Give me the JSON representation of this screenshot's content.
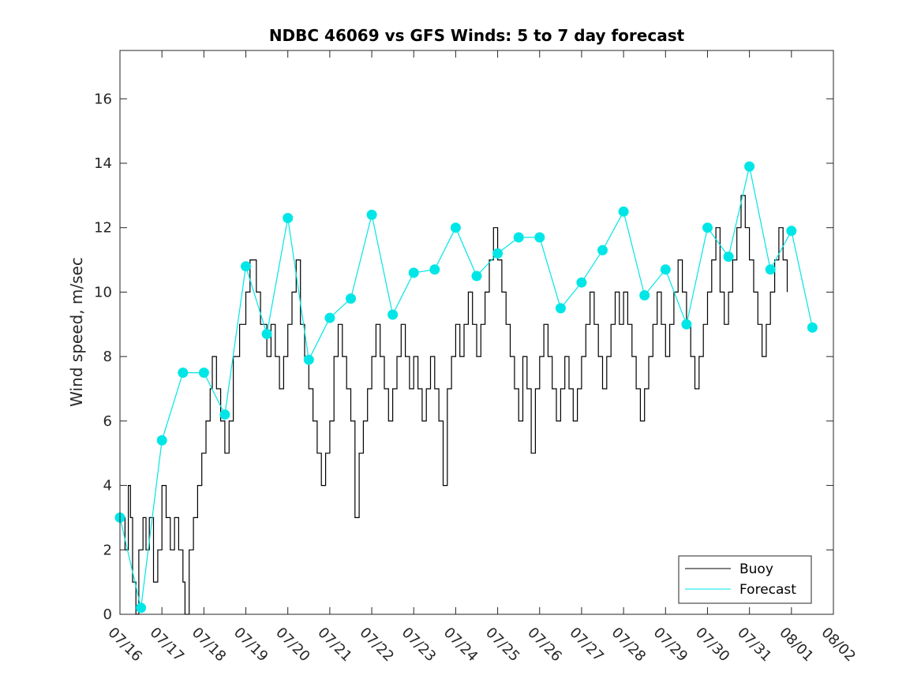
{
  "chart_data": {
    "type": "line",
    "title": "NDBC 46069 vs GFS Winds: 5 to 7 day forecast",
    "xlabel": "",
    "ylabel": "Wind speed, m/sec",
    "xlim": [
      0,
      17
    ],
    "ylim": [
      0,
      17.5
    ],
    "x_tick_labels": [
      "07/16",
      "07/17",
      "07/18",
      "07/19",
      "07/20",
      "07/21",
      "07/22",
      "07/23",
      "07/24",
      "07/25",
      "07/26",
      "07/27",
      "07/28",
      "07/29",
      "07/30",
      "07/31",
      "08/01",
      "08/02"
    ],
    "y_ticks": [
      0,
      2,
      4,
      6,
      8,
      10,
      12,
      14,
      16
    ],
    "grid": false,
    "legend_position": "bottom-right",
    "legend": [
      {
        "label": "Buoy",
        "color": "#000000"
      },
      {
        "label": "Forecast",
        "color": "#00e6e6"
      }
    ],
    "series": [
      {
        "name": "Buoy",
        "color": "#000000",
        "points": [
          [
            0.0,
            3
          ],
          [
            0.12,
            2
          ],
          [
            0.2,
            4
          ],
          [
            0.25,
            3
          ],
          [
            0.3,
            1
          ],
          [
            0.38,
            0
          ],
          [
            0.45,
            2
          ],
          [
            0.55,
            3
          ],
          [
            0.62,
            2
          ],
          [
            0.7,
            3
          ],
          [
            0.8,
            1
          ],
          [
            0.9,
            2
          ],
          [
            1.0,
            4
          ],
          [
            1.1,
            3
          ],
          [
            1.2,
            2
          ],
          [
            1.3,
            3
          ],
          [
            1.4,
            2
          ],
          [
            1.5,
            1
          ],
          [
            1.55,
            0
          ],
          [
            1.65,
            2
          ],
          [
            1.75,
            3
          ],
          [
            1.85,
            4
          ],
          [
            1.95,
            5
          ],
          [
            2.05,
            6
          ],
          [
            2.15,
            7
          ],
          [
            2.2,
            8
          ],
          [
            2.3,
            7
          ],
          [
            2.4,
            6
          ],
          [
            2.5,
            5
          ],
          [
            2.6,
            6
          ],
          [
            2.7,
            8
          ],
          [
            2.85,
            9
          ],
          [
            3.0,
            10
          ],
          [
            3.1,
            11
          ],
          [
            3.25,
            10
          ],
          [
            3.35,
            9
          ],
          [
            3.5,
            8
          ],
          [
            3.6,
            9
          ],
          [
            3.7,
            8
          ],
          [
            3.8,
            7
          ],
          [
            3.9,
            8
          ],
          [
            4.0,
            9
          ],
          [
            4.1,
            10
          ],
          [
            4.2,
            11
          ],
          [
            4.3,
            9
          ],
          [
            4.4,
            8
          ],
          [
            4.5,
            7
          ],
          [
            4.6,
            6
          ],
          [
            4.7,
            5
          ],
          [
            4.8,
            4
          ],
          [
            4.9,
            5
          ],
          [
            5.0,
            6
          ],
          [
            5.1,
            8
          ],
          [
            5.2,
            9
          ],
          [
            5.3,
            8
          ],
          [
            5.4,
            7
          ],
          [
            5.5,
            6
          ],
          [
            5.6,
            3
          ],
          [
            5.7,
            5
          ],
          [
            5.8,
            6
          ],
          [
            5.9,
            7
          ],
          [
            6.0,
            8
          ],
          [
            6.1,
            9
          ],
          [
            6.2,
            8
          ],
          [
            6.3,
            7
          ],
          [
            6.4,
            6
          ],
          [
            6.5,
            7
          ],
          [
            6.6,
            8
          ],
          [
            6.7,
            9
          ],
          [
            6.8,
            8
          ],
          [
            6.9,
            7
          ],
          [
            7.0,
            8
          ],
          [
            7.1,
            7
          ],
          [
            7.2,
            6
          ],
          [
            7.3,
            7
          ],
          [
            7.4,
            8
          ],
          [
            7.5,
            7
          ],
          [
            7.6,
            6
          ],
          [
            7.7,
            4
          ],
          [
            7.8,
            7
          ],
          [
            7.9,
            8
          ],
          [
            8.0,
            9
          ],
          [
            8.1,
            8
          ],
          [
            8.2,
            9
          ],
          [
            8.3,
            10
          ],
          [
            8.4,
            9
          ],
          [
            8.5,
            8
          ],
          [
            8.6,
            9
          ],
          [
            8.7,
            10
          ],
          [
            8.8,
            11
          ],
          [
            8.9,
            12
          ],
          [
            9.0,
            11
          ],
          [
            9.1,
            10
          ],
          [
            9.2,
            9
          ],
          [
            9.3,
            8
          ],
          [
            9.4,
            7
          ],
          [
            9.5,
            6
          ],
          [
            9.6,
            8
          ],
          [
            9.7,
            7
          ],
          [
            9.8,
            5
          ],
          [
            9.9,
            7
          ],
          [
            10.0,
            8
          ],
          [
            10.1,
            9
          ],
          [
            10.2,
            8
          ],
          [
            10.3,
            7
          ],
          [
            10.4,
            6
          ],
          [
            10.5,
            7
          ],
          [
            10.6,
            8
          ],
          [
            10.7,
            7
          ],
          [
            10.8,
            6
          ],
          [
            10.9,
            7
          ],
          [
            11.0,
            8
          ],
          [
            11.1,
            9
          ],
          [
            11.2,
            10
          ],
          [
            11.3,
            9
          ],
          [
            11.4,
            8
          ],
          [
            11.5,
            7
          ],
          [
            11.6,
            8
          ],
          [
            11.7,
            9
          ],
          [
            11.8,
            10
          ],
          [
            11.9,
            9
          ],
          [
            12.0,
            10
          ],
          [
            12.1,
            9
          ],
          [
            12.2,
            8
          ],
          [
            12.3,
            7
          ],
          [
            12.4,
            6
          ],
          [
            12.5,
            7
          ],
          [
            12.6,
            8
          ],
          [
            12.7,
            9
          ],
          [
            12.8,
            10
          ],
          [
            12.9,
            9
          ],
          [
            13.0,
            8
          ],
          [
            13.1,
            9
          ],
          [
            13.2,
            10
          ],
          [
            13.3,
            11
          ],
          [
            13.4,
            10
          ],
          [
            13.5,
            9
          ],
          [
            13.6,
            8
          ],
          [
            13.7,
            7
          ],
          [
            13.8,
            8
          ],
          [
            13.9,
            9
          ],
          [
            14.0,
            10
          ],
          [
            14.1,
            11
          ],
          [
            14.2,
            12
          ],
          [
            14.3,
            10
          ],
          [
            14.4,
            9
          ],
          [
            14.5,
            10
          ],
          [
            14.6,
            11
          ],
          [
            14.7,
            12
          ],
          [
            14.8,
            13
          ],
          [
            14.9,
            12
          ],
          [
            15.0,
            11
          ],
          [
            15.1,
            10
          ],
          [
            15.2,
            9
          ],
          [
            15.3,
            8
          ],
          [
            15.4,
            9
          ],
          [
            15.5,
            10
          ],
          [
            15.6,
            11
          ],
          [
            15.7,
            12
          ],
          [
            15.8,
            11
          ],
          [
            15.9,
            10
          ]
        ]
      },
      {
        "name": "Forecast",
        "color": "#00e6e6",
        "points": [
          [
            0.0,
            3.0
          ],
          [
            0.5,
            0.2
          ],
          [
            1.0,
            5.4
          ],
          [
            1.5,
            7.5
          ],
          [
            2.0,
            7.5
          ],
          [
            2.5,
            6.2
          ],
          [
            3.0,
            10.8
          ],
          [
            3.5,
            8.7
          ],
          [
            4.0,
            12.3
          ],
          [
            4.5,
            7.9
          ],
          [
            5.0,
            9.2
          ],
          [
            5.5,
            9.8
          ],
          [
            6.0,
            12.4
          ],
          [
            6.5,
            9.3
          ],
          [
            7.0,
            10.6
          ],
          [
            7.5,
            10.7
          ],
          [
            8.0,
            12.0
          ],
          [
            8.5,
            10.5
          ],
          [
            9.0,
            11.2
          ],
          [
            9.5,
            11.7
          ],
          [
            10.0,
            11.7
          ],
          [
            10.5,
            9.5
          ],
          [
            11.0,
            10.3
          ],
          [
            11.5,
            11.3
          ],
          [
            12.0,
            12.5
          ],
          [
            12.5,
            9.9
          ],
          [
            13.0,
            10.7
          ],
          [
            13.5,
            9.0
          ],
          [
            14.0,
            12.0
          ],
          [
            14.5,
            11.1
          ],
          [
            15.0,
            13.9
          ],
          [
            15.5,
            10.7
          ],
          [
            16.0,
            11.9
          ],
          [
            16.5,
            8.9
          ]
        ]
      }
    ]
  }
}
